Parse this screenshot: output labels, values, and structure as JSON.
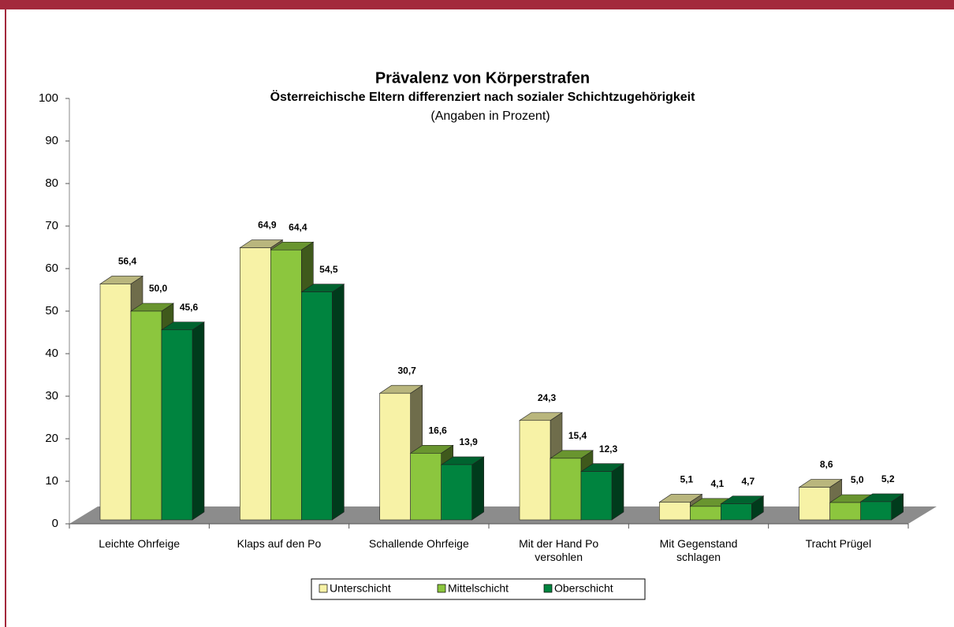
{
  "chart_data": {
    "type": "bar3d",
    "title": "Prävalenz von Körperstrafen",
    "subtitle": "Österreichische Eltern differenziert nach sozialer Schichtzugehörigkeit",
    "note": "(Angaben in Prozent)",
    "categories": [
      "Leichte Ohrfeige",
      "Klaps auf den Po",
      "Schallende Ohrfeige",
      "Mit der Hand  Po\nversohlen",
      "Mit Gegenstand\nschlagen",
      "Tracht Prügel"
    ],
    "series": [
      {
        "name": "Unterschicht",
        "color": "#f7f2a6",
        "values": [
          56.4,
          64.9,
          30.7,
          24.3,
          5.1,
          8.6
        ],
        "value_labels": [
          "56,4",
          "64,9",
          "30,7",
          "24,3",
          "5,1",
          "8,6"
        ]
      },
      {
        "name": "Mittelschicht",
        "color": "#8cc63e",
        "values": [
          50.0,
          64.4,
          16.6,
          15.4,
          4.1,
          5.0
        ],
        "value_labels": [
          "50,0",
          "64,4",
          "16,6",
          "15,4",
          "4,1",
          "5,0"
        ]
      },
      {
        "name": "Oberschicht",
        "color": "#00843f",
        "values": [
          45.6,
          54.5,
          13.9,
          12.3,
          4.7,
          5.2
        ],
        "value_labels": [
          "45,6",
          "54,5",
          "13,9",
          "12,3",
          "4,7",
          "5,2"
        ]
      }
    ],
    "ylim": [
      0,
      100
    ],
    "yticks": [
      0,
      10,
      20,
      30,
      40,
      50,
      60,
      70,
      80,
      90,
      100
    ],
    "grid": false,
    "legend": "bottom"
  }
}
